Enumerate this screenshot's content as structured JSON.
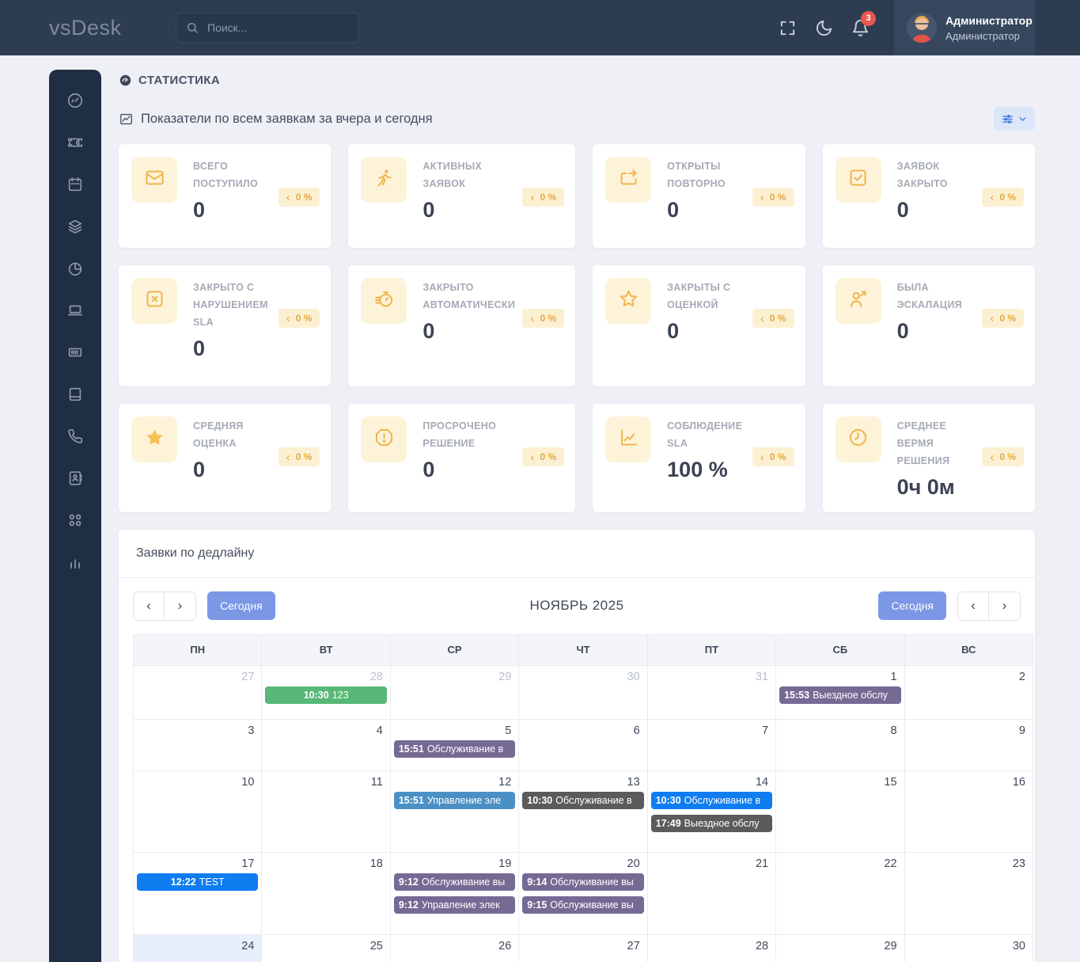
{
  "navbar": {
    "logo": "vsDesk",
    "search": {
      "placeholder": "Поиск..."
    },
    "notifications": {
      "count": "3"
    },
    "user": {
      "name": "Администратор",
      "role": "Администратор"
    }
  },
  "sidebar": {
    "items": [
      "gauge-icon",
      "ticket-icon",
      "calendar-icon",
      "layers-icon",
      "pie-chart-icon",
      "laptop-icon",
      "barcode-icon",
      "book-icon",
      "phone-icon",
      "address-book-icon",
      "apps-icon",
      "bar-chart-icon"
    ]
  },
  "page": {
    "title": "СТАТИСТИКА",
    "subtitle": "Показатели по всем заявкам за вчера и сегодня"
  },
  "colors": {
    "accent_blue": "#7b97e6",
    "card_icon": "#f1b54c",
    "badge_text": "#e7a83e",
    "notification_red": "#e8574e"
  },
  "stats_cards": [
    {
      "icon": "envelope-icon",
      "title": "ВСЕГО ПОСТУПИЛО",
      "value": "0",
      "badge": "0 %"
    },
    {
      "icon": "running-icon",
      "title": "АКТИВНЫХ ЗАЯВОК",
      "value": "0",
      "badge": "0 %"
    },
    {
      "icon": "repeat-icon",
      "title": "ОТКРЫТЫ ПОВТОРНО",
      "value": "0",
      "badge": "0 %"
    },
    {
      "icon": "check-square-icon",
      "title": "ЗАЯВОК ЗАКРЫТО",
      "value": "0",
      "badge": "0 %"
    },
    {
      "icon": "x-square-icon",
      "title": "ЗАКРЫТО С НАРУШЕНИЕМ SLA",
      "value": "0",
      "badge": "0 %"
    },
    {
      "icon": "stopwatch-icon",
      "title": "ЗАКРЫТО АВТОМАТИЧЕСКИ",
      "value": "0",
      "badge": "0 %"
    },
    {
      "icon": "star-outline-icon",
      "title": "ЗАКРЫТЫ С ОЦЕНКОЙ",
      "value": "0",
      "badge": "0 %"
    },
    {
      "icon": "user-arrow-icon",
      "title": "БЫЛА ЭСКАЛАЦИЯ",
      "value": "0",
      "badge": "0 %"
    },
    {
      "icon": "star-filled-icon",
      "title": "СРЕДНЯЯ ОЦЕНКА",
      "value": "0",
      "badge": "0 %"
    },
    {
      "icon": "alert-octagon-icon",
      "title": "ПРОСРОЧЕНО РЕШЕНИЕ",
      "value": "0",
      "badge": "0 %"
    },
    {
      "icon": "chart-line-icon",
      "title": "СОБЛЮДЕНИЕ SLA",
      "value": "100 %",
      "badge": "0 %"
    },
    {
      "icon": "clock-icon",
      "title": "СРЕДНЕЕ ВЕРМЯ РЕШЕНИЯ",
      "value": "0ч 0м",
      "badge": "0 %"
    }
  ],
  "calendar": {
    "panel_title": "Заявки по дедлайну",
    "month_title": "НОЯБРЬ 2025",
    "today_label": "Сегодня",
    "day_headers": [
      "ПН",
      "ВТ",
      "СР",
      "ЧТ",
      "ПТ",
      "СБ",
      "ВС"
    ],
    "weeks": [
      {
        "days": [
          {
            "date": "27",
            "other": true,
            "events": []
          },
          {
            "date": "28",
            "other": true,
            "events": [
              {
                "time": "10:30",
                "title": "123",
                "color": "#57b877",
                "centered": true
              }
            ]
          },
          {
            "date": "29",
            "other": true,
            "events": []
          },
          {
            "date": "30",
            "other": true,
            "events": []
          },
          {
            "date": "31",
            "other": true,
            "events": []
          },
          {
            "date": "1",
            "events": [
              {
                "time": "15:53",
                "title": "Выездное обслу",
                "color": "#756a94"
              }
            ]
          },
          {
            "date": "2",
            "events": []
          }
        ]
      },
      {
        "days": [
          {
            "date": "3",
            "events": []
          },
          {
            "date": "4",
            "events": []
          },
          {
            "date": "5",
            "events": [
              {
                "time": "15:51",
                "title": "Обслуживание в",
                "color": "#756a94"
              }
            ]
          },
          {
            "date": "6",
            "events": []
          },
          {
            "date": "7",
            "events": []
          },
          {
            "date": "8",
            "events": []
          },
          {
            "date": "9",
            "events": []
          }
        ]
      },
      {
        "days": [
          {
            "date": "10",
            "events": []
          },
          {
            "date": "11",
            "events": []
          },
          {
            "date": "12",
            "events": [
              {
                "time": "15:51",
                "title": "Управление эле",
                "color": "#4b90c4"
              }
            ]
          },
          {
            "date": "13",
            "events": [
              {
                "time": "10:30",
                "title": "Обслуживание в",
                "color": "#5b5b5b"
              }
            ]
          },
          {
            "date": "14",
            "events": [
              {
                "time": "10:30",
                "title": "Обслуживание в",
                "color": "#0f7df0"
              },
              {
                "time": "17:49",
                "title": "Выездное обслу",
                "color": "#5b5b5b"
              }
            ]
          },
          {
            "date": "15",
            "events": []
          },
          {
            "date": "16",
            "events": []
          }
        ]
      },
      {
        "days": [
          {
            "date": "17",
            "events": [
              {
                "time": "12:22",
                "title": "TEST",
                "color": "#0f7df0",
                "centered": true
              }
            ]
          },
          {
            "date": "18",
            "events": []
          },
          {
            "date": "19",
            "events": [
              {
                "time": "9:12",
                "title": "Обслуживание вы",
                "color": "#756a94"
              },
              {
                "time": "9:12",
                "title": "Управление элек",
                "color": "#756a94"
              }
            ]
          },
          {
            "date": "20",
            "events": [
              {
                "time": "9:14",
                "title": "Обслуживание вы",
                "color": "#756a94"
              },
              {
                "time": "9:15",
                "title": "Обслуживание вы",
                "color": "#756a94"
              }
            ]
          },
          {
            "date": "21",
            "events": []
          },
          {
            "date": "22",
            "events": []
          },
          {
            "date": "23",
            "events": []
          }
        ]
      },
      {
        "days": [
          {
            "date": "24",
            "today": true,
            "events": []
          },
          {
            "date": "25",
            "events": []
          },
          {
            "date": "26",
            "events": []
          },
          {
            "date": "27",
            "events": []
          },
          {
            "date": "28",
            "events": []
          },
          {
            "date": "29",
            "events": []
          },
          {
            "date": "30",
            "events": []
          }
        ]
      }
    ]
  }
}
